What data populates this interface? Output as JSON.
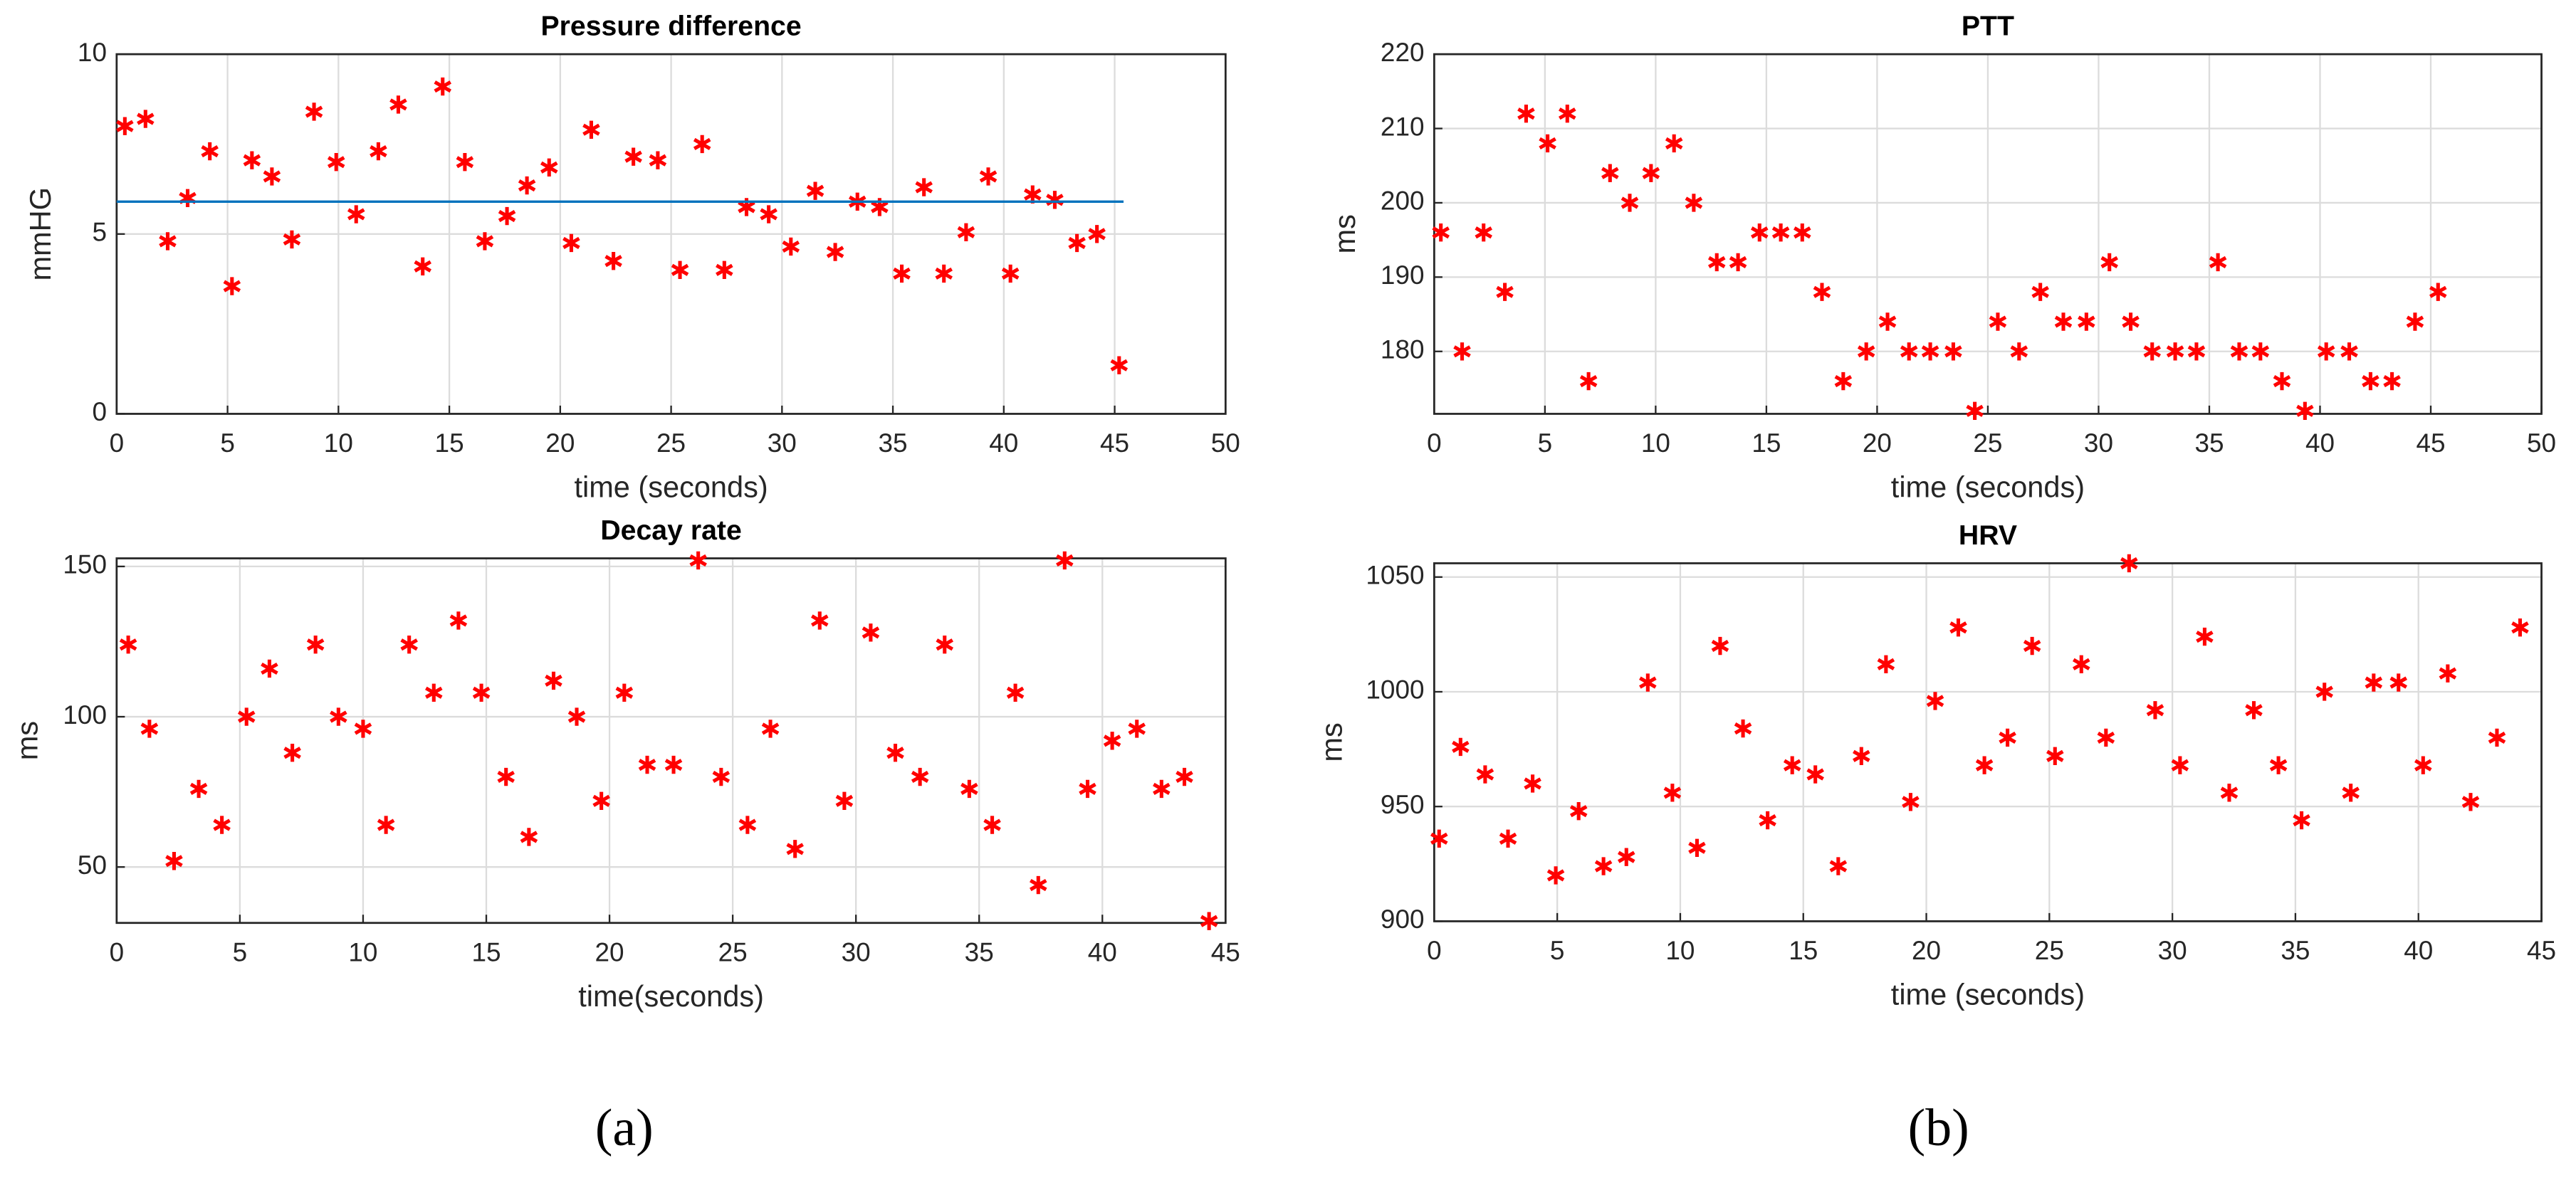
{
  "chart_data": [
    {
      "type": "scatter",
      "title": "Pressure difference",
      "xlabel": "time (seconds)",
      "ylabel": "mmHG",
      "xlim": [
        0,
        50
      ],
      "ylim": [
        0,
        10
      ],
      "xticks": [
        0,
        5,
        10,
        15,
        20,
        25,
        30,
        35,
        40,
        45,
        50
      ],
      "yticks": [
        0,
        5,
        10
      ],
      "grid": true,
      "series": [
        {
          "color": "#ff0000",
          "marker": "asterisk",
          "x": [
            0.37,
            1.3,
            2.3,
            3.2,
            4.2,
            5.2,
            6.1,
            7.0,
            7.9,
            8.9,
            9.9,
            10.8,
            11.8,
            12.7,
            13.8,
            14.7,
            15.7,
            16.6,
            17.6,
            18.5,
            19.5,
            20.5,
            21.4,
            22.4,
            23.3,
            24.4,
            25.4,
            26.4,
            27.4,
            28.4,
            29.4,
            30.4,
            31.5,
            32.4,
            33.4,
            34.4,
            35.4,
            36.4,
            37.3,
            38.3,
            39.3,
            40.3,
            41.3,
            42.3,
            43.3,
            44.2,
            45.2
          ],
          "values": [
            8.0,
            8.2,
            4.8,
            6.0,
            7.3,
            3.55,
            7.05,
            6.6,
            4.85,
            8.4,
            7.0,
            5.55,
            7.3,
            8.6,
            4.1,
            9.1,
            7.0,
            4.8,
            5.5,
            6.35,
            6.85,
            4.75,
            7.9,
            4.25,
            7.15,
            7.05,
            4.0,
            7.5,
            4.0,
            5.75,
            5.55,
            4.65,
            6.2,
            4.5,
            5.9,
            5.75,
            3.9,
            6.3,
            3.9,
            5.05,
            6.6,
            3.9,
            6.1,
            5.95,
            4.75,
            5.0,
            1.35
          ]
        },
        {
          "type": "line",
          "color": "#0072bd",
          "x": [
            0,
            45.4
          ],
          "values": [
            5.9,
            5.9
          ]
        }
      ]
    },
    {
      "type": "scatter",
      "title": "PTT",
      "xlabel": "time (seconds)",
      "ylabel": "ms",
      "xlim": [
        0,
        50
      ],
      "ylim": [
        171.6,
        220
      ],
      "xticks": [
        0,
        5,
        10,
        15,
        20,
        25,
        30,
        35,
        40,
        45,
        50
      ],
      "yticks": [
        180,
        190,
        200,
        210,
        220
      ],
      "grid": true,
      "series": [
        {
          "color": "#ff0000",
          "marker": "asterisk",
          "x": [
            0.3,
            1.26,
            2.23,
            3.19,
            4.15,
            5.12,
            6.01,
            6.97,
            7.94,
            8.83,
            9.79,
            10.83,
            11.72,
            12.76,
            13.72,
            14.69,
            15.65,
            16.62,
            17.51,
            18.47,
            19.51,
            20.47,
            21.44,
            22.4,
            23.44,
            24.41,
            25.45,
            26.41,
            27.37,
            28.41,
            29.45,
            30.49,
            31.45,
            32.42,
            33.46,
            34.42,
            35.39,
            36.35,
            37.31,
            38.28,
            39.32,
            40.28,
            41.32,
            42.28,
            43.25,
            44.29,
            45.33
          ],
          "values": [
            196,
            180,
            196,
            188,
            212,
            208,
            212,
            176,
            204,
            200,
            204,
            208,
            200,
            192,
            192,
            196,
            196,
            196,
            188,
            176,
            180,
            184,
            180,
            180,
            180,
            172,
            184,
            180,
            188,
            184,
            184,
            192,
            184,
            180,
            180,
            180,
            192,
            180,
            180,
            176,
            172,
            180,
            180,
            176,
            176,
            184,
            188
          ]
        }
      ]
    },
    {
      "type": "scatter",
      "title": "Decay rate",
      "xlabel": "time(seconds)",
      "ylabel": "ms",
      "xlim": [
        0,
        45
      ],
      "ylim": [
        31.4,
        152.7
      ],
      "xticks": [
        0,
        5,
        10,
        15,
        20,
        25,
        30,
        35,
        40,
        45
      ],
      "yticks": [
        50,
        100,
        150
      ],
      "grid": true,
      "series": [
        {
          "color": "#ff0000",
          "marker": "asterisk",
          "x": [
            0.47,
            1.33,
            2.33,
            3.33,
            4.27,
            5.27,
            6.2,
            7.13,
            8.07,
            9.0,
            10.0,
            10.93,
            11.87,
            12.87,
            13.87,
            14.8,
            15.8,
            16.73,
            17.73,
            18.67,
            19.67,
            20.6,
            21.53,
            22.6,
            23.6,
            24.53,
            25.6,
            26.53,
            27.53,
            28.53,
            29.53,
            30.6,
            31.6,
            32.6,
            33.6,
            34.6,
            35.53,
            36.47,
            37.4,
            38.47,
            39.4,
            40.4,
            41.4,
            42.4,
            43.33,
            44.33
          ],
          "values": [
            124,
            96,
            52,
            76,
            64,
            100,
            116,
            88,
            124,
            100,
            96,
            64,
            124,
            108,
            132,
            108,
            80,
            60,
            112,
            100,
            72,
            108,
            84,
            84,
            152,
            80,
            64,
            96,
            56,
            132,
            72,
            128,
            88,
            80,
            124,
            76,
            64,
            108,
            44,
            152,
            76,
            92,
            96,
            76,
            80,
            32
          ]
        }
      ]
    },
    {
      "type": "scatter",
      "title": "HRV",
      "xlabel": "time (seconds)",
      "ylabel": "ms",
      "xlim": [
        0,
        45
      ],
      "ylim": [
        900,
        1056
      ],
      "xticks": [
        0,
        5,
        10,
        15,
        20,
        25,
        30,
        35,
        40,
        45
      ],
      "yticks": [
        900,
        950,
        1000,
        1050
      ],
      "grid": true,
      "series": [
        {
          "color": "#ff0000",
          "marker": "asterisk",
          "x": [
            0.2,
            1.07,
            2.07,
            3.0,
            4.0,
            4.94,
            5.87,
            6.88,
            7.81,
            8.68,
            9.68,
            10.68,
            11.62,
            12.55,
            13.55,
            14.55,
            15.49,
            16.42,
            17.36,
            18.36,
            19.36,
            20.36,
            21.3,
            22.36,
            23.3,
            24.3,
            25.23,
            26.3,
            27.3,
            28.24,
            29.3,
            30.31,
            31.31,
            32.31,
            33.31,
            34.31,
            35.25,
            36.18,
            37.25,
            38.18,
            39.19,
            40.19,
            41.19,
            42.12,
            43.19,
            44.13
          ],
          "values": [
            936,
            976,
            964,
            936,
            960,
            920,
            948,
            924,
            928,
            1004,
            956,
            932,
            1020,
            984,
            944,
            968,
            964,
            924,
            972,
            1012,
            952,
            996,
            1028,
            968,
            980,
            1020,
            972,
            1012,
            980,
            1056,
            992,
            968,
            1024,
            956,
            992,
            968,
            944,
            1000,
            956,
            1004,
            1004,
            968,
            1008,
            952,
            980,
            1028
          ]
        }
      ]
    }
  ],
  "captions": [
    "(a)",
    "(b)"
  ]
}
